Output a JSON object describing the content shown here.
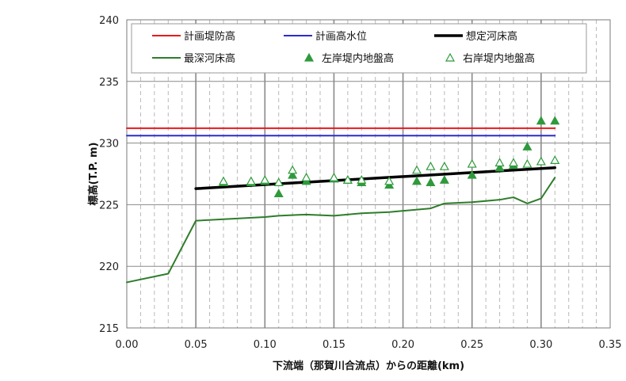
{
  "chart_data": {
    "type": "line",
    "title": "",
    "xlabel": "下流端（那賀川合流点）からの距離(km)",
    "ylabel": "標高(T.P. m)",
    "xlim": [
      0,
      0.35
    ],
    "ylim": [
      215,
      240
    ],
    "x_ticks": [
      "0.00",
      "0.05",
      "0.10",
      "0.15",
      "0.20",
      "0.25",
      "0.30",
      "0.35"
    ],
    "y_ticks": [
      "215",
      "220",
      "225",
      "230",
      "235",
      "240"
    ],
    "minor_x_step": 0.01,
    "grid": true,
    "legend_position": "top",
    "series": [
      {
        "name": "計画堤防高",
        "kind": "line",
        "color": "#e8191e",
        "width": 2,
        "points": [
          [
            0.0,
            231.2
          ],
          [
            0.31,
            231.2
          ]
        ]
      },
      {
        "name": "計画高水位",
        "kind": "line",
        "color": "#2c2ccf",
        "width": 2,
        "points": [
          [
            0.0,
            230.6
          ],
          [
            0.31,
            230.6
          ]
        ]
      },
      {
        "name": "想定河床高",
        "kind": "line",
        "color": "#000000",
        "width": 3.5,
        "points": [
          [
            0.05,
            226.3
          ],
          [
            0.31,
            228.0
          ]
        ]
      },
      {
        "name": "最深河床高",
        "kind": "line",
        "color": "#2e7d2a",
        "width": 2,
        "points": [
          [
            0.0,
            218.7
          ],
          [
            0.03,
            219.4
          ],
          [
            0.05,
            223.7
          ],
          [
            0.1,
            224.0
          ],
          [
            0.11,
            224.1
          ],
          [
            0.13,
            224.2
          ],
          [
            0.15,
            224.1
          ],
          [
            0.17,
            224.3
          ],
          [
            0.19,
            224.4
          ],
          [
            0.22,
            224.7
          ],
          [
            0.23,
            225.1
          ],
          [
            0.25,
            225.2
          ],
          [
            0.27,
            225.4
          ],
          [
            0.28,
            225.6
          ],
          [
            0.29,
            225.1
          ],
          [
            0.3,
            225.5
          ],
          [
            0.31,
            227.2
          ]
        ]
      },
      {
        "name": "左岸堤内地盤高",
        "kind": "filled-triangle",
        "color": "#2e9a3c",
        "points": [
          [
            0.07,
            226.8
          ],
          [
            0.09,
            226.8
          ],
          [
            0.1,
            226.9
          ],
          [
            0.11,
            225.9
          ],
          [
            0.12,
            227.4
          ],
          [
            0.13,
            226.9
          ],
          [
            0.15,
            227.1
          ],
          [
            0.16,
            227.0
          ],
          [
            0.17,
            226.8
          ],
          [
            0.19,
            226.6
          ],
          [
            0.21,
            226.9
          ],
          [
            0.22,
            226.8
          ],
          [
            0.23,
            227.0
          ],
          [
            0.25,
            227.4
          ],
          [
            0.27,
            228.0
          ],
          [
            0.28,
            228.2
          ],
          [
            0.29,
            229.7
          ],
          [
            0.3,
            231.8
          ],
          [
            0.31,
            231.8
          ]
        ]
      },
      {
        "name": "右岸堤内地盤高",
        "kind": "open-triangle",
        "color": "#2e9a3c",
        "points": [
          [
            0.07,
            226.9
          ],
          [
            0.09,
            226.9
          ],
          [
            0.1,
            227.0
          ],
          [
            0.11,
            226.8
          ],
          [
            0.12,
            227.8
          ],
          [
            0.13,
            227.2
          ],
          [
            0.15,
            227.2
          ],
          [
            0.16,
            227.0
          ],
          [
            0.17,
            227.0
          ],
          [
            0.19,
            226.9
          ],
          [
            0.21,
            227.8
          ],
          [
            0.22,
            228.1
          ],
          [
            0.23,
            228.1
          ],
          [
            0.25,
            228.3
          ],
          [
            0.27,
            228.4
          ],
          [
            0.28,
            228.4
          ],
          [
            0.29,
            228.3
          ],
          [
            0.3,
            228.5
          ],
          [
            0.31,
            228.6
          ]
        ]
      }
    ]
  }
}
